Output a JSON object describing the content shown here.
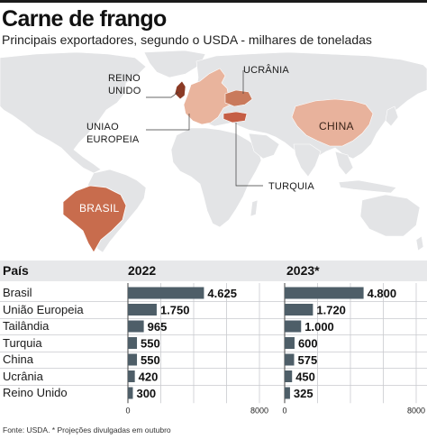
{
  "header": {
    "title": "Carne de frango",
    "subtitle": "Principais exportadores, segundo o USDA - milhares de toneladas"
  },
  "map": {
    "labels": {
      "reino_unido_1": "REINO",
      "reino_unido_2": "UNIDO",
      "ucrania": "UCRÂNIA",
      "uniao_europeia_1": "UNIAO",
      "uniao_europeia_2": "EUROPEIA",
      "china": "CHINA",
      "turquia": "TURQUIA",
      "brasil": "BRASIL"
    },
    "colors": {
      "land": "#e3e4e6",
      "border": "#ffffff",
      "brasil": "#c86c4d",
      "turquia": "#c55e45",
      "ucrania": "#c97a5c",
      "uniao_europeia": "#e9b49d",
      "reino_unido": "#8b3a25",
      "china": "#e8b29c"
    }
  },
  "table": {
    "col_country": "País",
    "col_2022": "2022",
    "col_2023": "2023*"
  },
  "chart_data": {
    "type": "bar",
    "categories": [
      "Brasil",
      "União Europeia",
      "Tailândia",
      "Turquia",
      "China",
      "Ucrânia",
      "Reino Unido"
    ],
    "series": [
      {
        "name": "2022",
        "values": [
          4625,
          1750,
          965,
          550,
          550,
          420,
          300
        ],
        "labels": [
          "4.625",
          "1.750",
          "965",
          "550",
          "550",
          "420",
          "300"
        ]
      },
      {
        "name": "2023*",
        "values": [
          4800,
          1720,
          1000,
          600,
          575,
          450,
          325
        ],
        "labels": [
          "4.800",
          "1.720",
          "1.000",
          "600",
          "575",
          "450",
          "325"
        ]
      }
    ],
    "xlim": [
      0,
      8000
    ],
    "tick_labels": {
      "min": "0",
      "max": "8000"
    },
    "bar_color": "#4e5e68",
    "grid": true
  },
  "footnote": "Fonte: USDA. * Projeções divulgadas em outubro"
}
